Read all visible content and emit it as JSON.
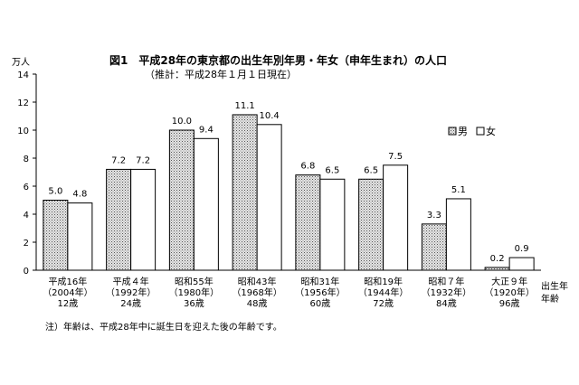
{
  "chart_data": {
    "type": "bar",
    "title": "図1　平成28年の東京都の出生年別年男・年女（申年生まれ）の人口",
    "subtitle": "（推計：平成28年１月１日現在）",
    "ylabel": "万人",
    "xlabel": "出生年\n年齢",
    "ylim": [
      0,
      14
    ],
    "yticks": [
      0,
      2,
      4,
      6,
      8,
      10,
      12,
      14
    ],
    "grid": false,
    "legend_position": "top-right",
    "categories": [
      [
        "平成16年",
        "（2004年）",
        "12歳"
      ],
      [
        "平成４年",
        "（1992年）",
        "24歳"
      ],
      [
        "昭和55年",
        "（1980年）",
        "36歳"
      ],
      [
        "昭和43年",
        "（1968年）",
        "48歳"
      ],
      [
        "昭和31年",
        "（1956年）",
        "60歳"
      ],
      [
        "昭和19年",
        "（1944年）",
        "72歳"
      ],
      [
        "昭和７年",
        "（1932年）",
        "84歳"
      ],
      [
        "大正９年",
        "（1920年）",
        "96歳"
      ]
    ],
    "series": [
      {
        "name": "男",
        "values": [
          5.0,
          7.2,
          10.0,
          11.1,
          6.8,
          6.5,
          3.3,
          0.2
        ],
        "labels": [
          "5.0",
          "7.2",
          "10.0",
          "11.1",
          "6.8",
          "6.5",
          "3.3",
          "0.2"
        ],
        "color": "#d4d4d4"
      },
      {
        "name": "女",
        "values": [
          4.8,
          7.2,
          9.4,
          10.4,
          6.5,
          7.5,
          5.1,
          0.9
        ],
        "labels": [
          "4.8",
          "7.2",
          "9.4",
          "10.4",
          "6.5",
          "7.5",
          "5.1",
          "0.9"
        ],
        "color": "#ffffff"
      }
    ]
  },
  "footnote": "注）年齢は、平成28年中に誕生日を迎えた後の年齢です。"
}
